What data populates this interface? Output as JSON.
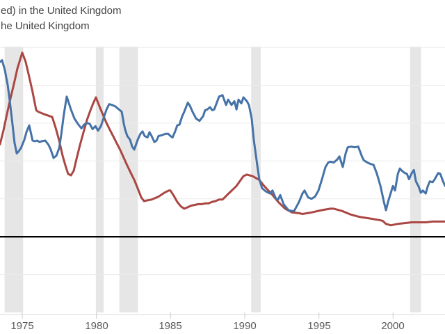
{
  "title": {
    "line1": "ed) in the United Kingdom",
    "line2": "he United Kingdom"
  },
  "chart_data": {
    "type": "line",
    "title": "ed) in the United Kingdom / he United Kingdom (legend text cropped at left edge)",
    "xlabel": "",
    "ylabel": "",
    "legend_position": "top-left",
    "grid": true,
    "x_axis": {
      "range": [
        1973.5,
        2003.5
      ],
      "ticks": [
        1975,
        1980,
        1985,
        1990,
        1995,
        2000
      ],
      "tick_labels": [
        "1975",
        "1980",
        "1985",
        "1990",
        "1995",
        "2000"
      ]
    },
    "y_axis": {
      "range": [
        -10,
        25.1
      ],
      "gridline_values": [
        25,
        20,
        15,
        10,
        5,
        -5
      ],
      "zero_line": 0
    },
    "recession_bands": [
      [
        1973.81,
        1975.06
      ],
      [
        1979.96,
        1980.49
      ],
      [
        1981.55,
        1982.8
      ],
      [
        1990.43,
        1991.07
      ],
      [
        2001.14,
        2001.88
      ]
    ],
    "colors": {
      "series_blue": "#4572a7",
      "series_red": "#aa4643",
      "band": "#e6e6e6",
      "gridline": "#ebebeb",
      "zero_line": "#000000",
      "axis_line": "#d9d9d9",
      "tick_mark": "#cccccc",
      "tick_label": "#595959",
      "title_text": "#444444"
    },
    "series": [
      {
        "name": "ed) in the United Kingdom",
        "color": "#4572a7",
        "points": [
          [
            1973.5,
            23.1
          ],
          [
            1973.64,
            23.3
          ],
          [
            1973.83,
            22.0
          ],
          [
            1974.02,
            20.0
          ],
          [
            1974.16,
            17.9
          ],
          [
            1974.34,
            14.9
          ],
          [
            1974.48,
            12.4
          ],
          [
            1974.63,
            11.0
          ],
          [
            1974.77,
            11.3
          ],
          [
            1974.91,
            11.7
          ],
          [
            1975.14,
            12.8
          ],
          [
            1975.28,
            13.8
          ],
          [
            1975.47,
            14.7
          ],
          [
            1975.7,
            12.7
          ],
          [
            1975.85,
            12.6
          ],
          [
            1975.99,
            12.7
          ],
          [
            1976.17,
            12.5
          ],
          [
            1976.31,
            12.6
          ],
          [
            1976.55,
            12.7
          ],
          [
            1976.78,
            12.1
          ],
          [
            1976.92,
            11.5
          ],
          [
            1977.11,
            10.4
          ],
          [
            1977.3,
            10.7
          ],
          [
            1977.49,
            11.7
          ],
          [
            1977.63,
            13.5
          ],
          [
            1977.81,
            16.2
          ],
          [
            1978.0,
            18.5
          ],
          [
            1978.28,
            16.8
          ],
          [
            1978.52,
            15.6
          ],
          [
            1978.75,
            14.9
          ],
          [
            1978.99,
            14.3
          ],
          [
            1979.17,
            14.8
          ],
          [
            1979.36,
            15.0
          ],
          [
            1979.55,
            14.9
          ],
          [
            1979.74,
            14.2
          ],
          [
            1979.93,
            14.6
          ],
          [
            1980.11,
            14.0
          ],
          [
            1980.3,
            14.6
          ],
          [
            1980.49,
            15.7
          ],
          [
            1980.68,
            16.8
          ],
          [
            1980.86,
            17.5
          ],
          [
            1981.05,
            17.4
          ],
          [
            1981.28,
            17.2
          ],
          [
            1981.52,
            16.8
          ],
          [
            1981.71,
            16.5
          ],
          [
            1981.85,
            14.9
          ],
          [
            1981.94,
            14.1
          ],
          [
            1982.08,
            13.3
          ],
          [
            1982.27,
            12.8
          ],
          [
            1982.41,
            11.9
          ],
          [
            1982.55,
            11.5
          ],
          [
            1982.78,
            12.8
          ],
          [
            1982.97,
            13.6
          ],
          [
            1983.11,
            13.9
          ],
          [
            1983.25,
            13.3
          ],
          [
            1983.44,
            13.1
          ],
          [
            1983.58,
            13.8
          ],
          [
            1983.72,
            13.3
          ],
          [
            1983.91,
            12.5
          ],
          [
            1984.05,
            12.7
          ],
          [
            1984.19,
            13.3
          ],
          [
            1984.42,
            13.4
          ],
          [
            1984.66,
            13.6
          ],
          [
            1984.84,
            13.6
          ],
          [
            1984.99,
            13.3
          ],
          [
            1985.13,
            13.1
          ],
          [
            1985.31,
            13.9
          ],
          [
            1985.45,
            14.7
          ],
          [
            1985.6,
            14.8
          ],
          [
            1985.78,
            15.9
          ],
          [
            1985.92,
            16.5
          ],
          [
            1986.16,
            17.7
          ],
          [
            1986.3,
            17.3
          ],
          [
            1986.48,
            16.5
          ],
          [
            1986.72,
            15.6
          ],
          [
            1986.95,
            15.3
          ],
          [
            1987.19,
            15.9
          ],
          [
            1987.33,
            16.7
          ],
          [
            1987.47,
            16.8
          ],
          [
            1987.66,
            17.1
          ],
          [
            1987.8,
            16.7
          ],
          [
            1987.94,
            16.8
          ],
          [
            1988.27,
            18.5
          ],
          [
            1988.5,
            18.7
          ],
          [
            1988.74,
            17.4
          ],
          [
            1988.88,
            18.1
          ],
          [
            1989.11,
            17.4
          ],
          [
            1989.3,
            17.9
          ],
          [
            1989.44,
            16.8
          ],
          [
            1989.58,
            18.1
          ],
          [
            1989.77,
            17.6
          ],
          [
            1989.91,
            18.4
          ],
          [
            1990.14,
            17.9
          ],
          [
            1990.28,
            17.4
          ],
          [
            1990.47,
            15.6
          ],
          [
            1990.61,
            12.8
          ],
          [
            1990.84,
            9.5
          ],
          [
            1990.98,
            7.6
          ],
          [
            1991.17,
            6.4
          ],
          [
            1991.41,
            6.0
          ],
          [
            1991.69,
            5.7
          ],
          [
            1991.87,
            6.1
          ],
          [
            1992.11,
            5.0
          ],
          [
            1992.25,
            4.9
          ],
          [
            1992.39,
            5.5
          ],
          [
            1992.62,
            4.3
          ],
          [
            1992.95,
            3.5
          ],
          [
            1993.19,
            3.4
          ],
          [
            1993.33,
            3.4
          ],
          [
            1993.66,
            4.6
          ],
          [
            1993.89,
            5.7
          ],
          [
            1994.03,
            6.1
          ],
          [
            1994.27,
            5.2
          ],
          [
            1994.5,
            5.0
          ],
          [
            1994.74,
            5.3
          ],
          [
            1994.97,
            6.1
          ],
          [
            1995.21,
            7.6
          ],
          [
            1995.44,
            9.2
          ],
          [
            1995.63,
            9.8
          ],
          [
            1995.77,
            9.9
          ],
          [
            1996.0,
            9.8
          ],
          [
            1996.24,
            10.2
          ],
          [
            1996.38,
            10.6
          ],
          [
            1996.61,
            9.2
          ],
          [
            1996.8,
            11.0
          ],
          [
            1996.94,
            11.8
          ],
          [
            1997.18,
            11.9
          ],
          [
            1997.41,
            11.8
          ],
          [
            1997.65,
            11.9
          ],
          [
            1997.88,
            10.7
          ],
          [
            1998.02,
            10.1
          ],
          [
            1998.26,
            9.8
          ],
          [
            1998.49,
            9.6
          ],
          [
            1998.68,
            9.5
          ],
          [
            1998.91,
            8.3
          ],
          [
            1999.15,
            6.7
          ],
          [
            1999.38,
            4.6
          ],
          [
            1999.52,
            3.5
          ],
          [
            1999.66,
            4.6
          ],
          [
            1999.85,
            5.8
          ],
          [
            1999.99,
            6.7
          ],
          [
            2000.13,
            6.1
          ],
          [
            2000.32,
            8.3
          ],
          [
            2000.46,
            9.0
          ],
          [
            2000.6,
            8.7
          ],
          [
            2000.79,
            8.4
          ],
          [
            2000.93,
            8.3
          ],
          [
            2001.07,
            7.6
          ],
          [
            2001.26,
            8.4
          ],
          [
            2001.4,
            8.8
          ],
          [
            2001.54,
            7.3
          ],
          [
            2001.73,
            6.6
          ],
          [
            2001.87,
            5.8
          ],
          [
            2002.01,
            6.1
          ],
          [
            2002.2,
            5.7
          ],
          [
            2002.34,
            6.7
          ],
          [
            2002.48,
            7.3
          ],
          [
            2002.67,
            7.2
          ],
          [
            2002.81,
            7.6
          ],
          [
            2003.04,
            8.4
          ],
          [
            2003.18,
            8.3
          ],
          [
            2003.37,
            7.3
          ],
          [
            2003.51,
            6.7
          ]
        ]
      },
      {
        "name": "he United Kingdom",
        "color": "#aa4643",
        "points": [
          [
            1973.5,
            12.2
          ],
          [
            1973.73,
            14.0
          ],
          [
            1973.97,
            16.2
          ],
          [
            1974.2,
            18.2
          ],
          [
            1974.44,
            20.2
          ],
          [
            1974.67,
            22.2
          ],
          [
            1975.0,
            24.3
          ],
          [
            1975.23,
            23.1
          ],
          [
            1975.47,
            21.1
          ],
          [
            1975.7,
            19.1
          ],
          [
            1975.94,
            16.7
          ],
          [
            1976.08,
            16.5
          ],
          [
            1976.45,
            16.2
          ],
          [
            1976.88,
            15.9
          ],
          [
            1977.02,
            15.8
          ],
          [
            1977.25,
            14.4
          ],
          [
            1977.49,
            12.7
          ],
          [
            1977.72,
            10.7
          ],
          [
            1977.91,
            9.4
          ],
          [
            1978.09,
            8.3
          ],
          [
            1978.28,
            8.1
          ],
          [
            1978.47,
            8.7
          ],
          [
            1978.66,
            10.3
          ],
          [
            1978.89,
            12.1
          ],
          [
            1979.13,
            13.8
          ],
          [
            1979.36,
            15.4
          ],
          [
            1979.6,
            16.7
          ],
          [
            1979.78,
            17.6
          ],
          [
            1979.97,
            18.4
          ],
          [
            1980.21,
            17.2
          ],
          [
            1980.44,
            16.1
          ],
          [
            1980.68,
            15.0
          ],
          [
            1980.91,
            14.1
          ],
          [
            1981.15,
            13.2
          ],
          [
            1981.38,
            12.3
          ],
          [
            1981.62,
            11.4
          ],
          [
            1981.85,
            10.4
          ],
          [
            1982.08,
            9.4
          ],
          [
            1982.32,
            8.4
          ],
          [
            1982.55,
            7.5
          ],
          [
            1982.78,
            6.4
          ],
          [
            1983.02,
            5.2
          ],
          [
            1983.21,
            4.7
          ],
          [
            1983.44,
            4.8
          ],
          [
            1983.72,
            4.9
          ],
          [
            1983.95,
            5.1
          ],
          [
            1984.19,
            5.3
          ],
          [
            1984.42,
            5.6
          ],
          [
            1984.66,
            5.9
          ],
          [
            1984.89,
            6.1
          ],
          [
            1984.99,
            6.1
          ],
          [
            1985.22,
            5.4
          ],
          [
            1985.45,
            4.6
          ],
          [
            1985.69,
            4.0
          ],
          [
            1985.92,
            3.7
          ],
          [
            1986.16,
            3.9
          ],
          [
            1986.39,
            4.1
          ],
          [
            1986.63,
            4.2
          ],
          [
            1986.86,
            4.3
          ],
          [
            1987.1,
            4.3
          ],
          [
            1987.33,
            4.4
          ],
          [
            1987.56,
            4.4
          ],
          [
            1987.8,
            4.6
          ],
          [
            1988.03,
            4.7
          ],
          [
            1988.27,
            4.9
          ],
          [
            1988.5,
            4.9
          ],
          [
            1988.97,
            5.8
          ],
          [
            1989.44,
            6.7
          ],
          [
            1989.91,
            8.0
          ],
          [
            1990.14,
            8.2
          ],
          [
            1990.52,
            8.0
          ],
          [
            1990.98,
            7.5
          ],
          [
            1991.31,
            6.7
          ],
          [
            1991.78,
            5.7
          ],
          [
            1992.25,
            4.6
          ],
          [
            1992.72,
            3.7
          ],
          [
            1993.19,
            3.2
          ],
          [
            1993.66,
            3.1
          ],
          [
            1993.89,
            3.0
          ],
          [
            1994.5,
            3.2
          ],
          [
            1995.16,
            3.5
          ],
          [
            1995.77,
            3.7
          ],
          [
            1996.0,
            3.7
          ],
          [
            1996.56,
            3.4
          ],
          [
            1997.18,
            2.9
          ],
          [
            1997.78,
            2.6
          ],
          [
            1998.44,
            2.4
          ],
          [
            1999.05,
            2.2
          ],
          [
            1999.29,
            2.1
          ],
          [
            1999.52,
            1.7
          ],
          [
            1999.85,
            1.5
          ],
          [
            2000.32,
            1.7
          ],
          [
            2000.79,
            1.8
          ],
          [
            2001.26,
            1.9
          ],
          [
            2001.73,
            1.9
          ],
          [
            2002.2,
            1.9
          ],
          [
            2002.67,
            2.0
          ],
          [
            2003.13,
            2.0
          ],
          [
            2003.51,
            2.0
          ]
        ]
      }
    ]
  }
}
